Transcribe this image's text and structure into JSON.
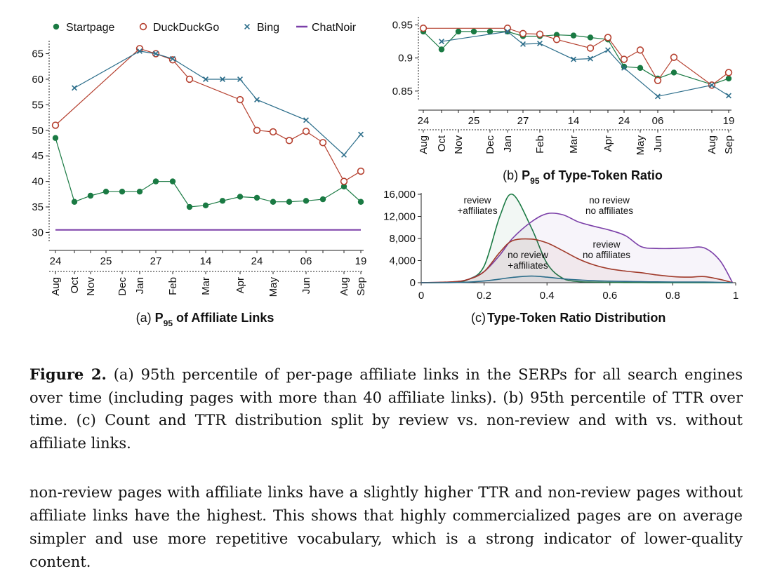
{
  "figure": {
    "caption_label": "Figure 2.",
    "caption_text": "(a) 95th percentile of per-page affiliate links in the SERPs for all search engines over time (including pages with more than 40 affiliate links). (b) 95th percentile of TTR over time. (c) Count and TTR distribution split by review vs. non-review and with vs. without affiliate links."
  },
  "body_text": "non-review pages with affiliate links have a slightly higher TTR and non-review pages without affiliate links have the highest. This shows that highly commercialized pages are on average simpler and use more repetitive vocabulary, which is a strong indicator of lower-quality content.",
  "colors": {
    "startpage": "#1a7a43",
    "duckduckgo": "#b5402f",
    "bing": "#2b6d8a",
    "chatnoir": "#7b3fa8",
    "review_affiliates": "#1a7a43",
    "noreview_noaff": "#7b3fa8",
    "review_noaff": "#a03a2a",
    "noreview_aff": "#2b6d8a"
  },
  "chart_data": [
    {
      "id": "a",
      "type": "line",
      "title_prefix": "(a) P",
      "title_sub": "95",
      "title_suffix": " of Affiliate Links",
      "legend": [
        "Startpage",
        "DuckDuckGo",
        "Bing",
        "ChatNoir"
      ],
      "legend_position": "top",
      "ylim": [
        28,
        67
      ],
      "yticks": [
        "65",
        "60",
        "55",
        "50",
        "45",
        "40",
        "35",
        "30"
      ],
      "day_ticks": [
        "24",
        "25",
        "27",
        "14",
        "24",
        "06",
        "19"
      ],
      "month_ticks": [
        "Aug",
        "Oct",
        "Nov",
        "Dec",
        "Jan",
        "Feb",
        "Mar",
        "Apr",
        "May",
        "Jun",
        "Aug",
        "Sep"
      ],
      "series": [
        {
          "name": "Startpage",
          "marker": "dot",
          "values": [
            48.5,
            36,
            37.2,
            38,
            38,
            38,
            40,
            40,
            35,
            35.3,
            36.2,
            37,
            36.8,
            36,
            36,
            36.2,
            36.5,
            39,
            36
          ]
        },
        {
          "name": "DuckDuckGo",
          "marker": "circle",
          "values": [
            51,
            null,
            null,
            null,
            null,
            66,
            65,
            63.8,
            60,
            null,
            null,
            56,
            50,
            49.7,
            48,
            49.8,
            47.6,
            40,
            42
          ]
        },
        {
          "name": "Bing",
          "marker": "x",
          "values": [
            null,
            58.3,
            null,
            null,
            null,
            65.5,
            65,
            64,
            null,
            60,
            60,
            60,
            56,
            null,
            null,
            52,
            null,
            45.2,
            49.2
          ]
        },
        {
          "name": "ChatNoir",
          "marker": "none",
          "values": [
            30.5,
            30.5,
            30.5,
            30.5,
            30.5,
            30.5,
            30.5,
            30.5,
            30.5,
            30.5,
            30.5,
            30.5,
            30.5,
            30.5,
            30.5,
            30.5,
            30.5,
            30.5,
            30.5
          ]
        }
      ]
    },
    {
      "id": "b",
      "type": "line",
      "title_prefix": "(b) P",
      "title_sub": "95",
      "title_suffix": " of Type-Token Ratio",
      "ylim": [
        0.835,
        0.958
      ],
      "yticks": [
        "0.95",
        "0.9",
        "0.85"
      ],
      "day_ticks": [
        "24",
        "25",
        "27",
        "14",
        "24",
        "06",
        "19"
      ],
      "month_ticks": [
        "Aug",
        "Oct",
        "Nov",
        "Dec",
        "Jan",
        "Feb",
        "Mar",
        "Apr",
        "May",
        "Jun",
        "Aug",
        "Sep"
      ],
      "series": [
        {
          "name": "Startpage",
          "marker": "dot",
          "values": [
            0.94,
            0.913,
            0.94,
            0.94,
            0.94,
            0.94,
            0.933,
            0.933,
            0.935,
            0.934,
            0.931,
            0.928,
            0.887,
            0.885,
            0.869,
            0.878,
            0.86,
            0.869
          ]
        },
        {
          "name": "DuckDuckGo",
          "marker": "circle",
          "values": [
            0.945,
            null,
            null,
            null,
            null,
            0.945,
            0.937,
            0.936,
            0.928,
            null,
            0.915,
            0.931,
            0.898,
            0.912,
            0.866,
            0.901,
            0.859,
            0.878
          ]
        },
        {
          "name": "Bing",
          "marker": "x",
          "values": [
            null,
            0.925,
            null,
            null,
            null,
            0.94,
            0.921,
            0.922,
            null,
            0.898,
            0.899,
            0.912,
            0.885,
            null,
            0.842,
            null,
            0.859,
            0.843
          ]
        }
      ]
    },
    {
      "id": "c",
      "type": "area",
      "title": "(c) Type-Token Ratio Distribution",
      "xlim": [
        0,
        1
      ],
      "ylim": [
        0,
        16000
      ],
      "xticks": [
        "0",
        "0.2",
        "0.4",
        "0.6",
        "0.8",
        "1"
      ],
      "yticks": [
        "16,000",
        "12,000",
        "8,000",
        "4,000",
        "0"
      ],
      "x": [
        0,
        0.1,
        0.15,
        0.2,
        0.25,
        0.29,
        0.35,
        0.4,
        0.45,
        0.5,
        0.55,
        0.6,
        0.65,
        0.7,
        0.75,
        0.8,
        0.85,
        0.9,
        0.95,
        0.99
      ],
      "series": [
        {
          "name": "review\n+affiliates",
          "values": [
            0,
            100,
            600,
            3000,
            12000,
            16000,
            10000,
            3500,
            800,
            200,
            100,
            50,
            30,
            20,
            10,
            10,
            5,
            0,
            0,
            0
          ]
        },
        {
          "name": "no review\nno affiliates",
          "values": [
            0,
            150,
            600,
            2000,
            5000,
            8000,
            11000,
            12500,
            12300,
            11000,
            10200,
            9500,
            8500,
            6500,
            6200,
            6200,
            6300,
            6300,
            4000,
            0
          ]
        },
        {
          "name": "review\nno affiliates",
          "values": [
            0,
            150,
            600,
            2000,
            5500,
            7600,
            7900,
            7200,
            5800,
            4300,
            3200,
            2500,
            2100,
            1800,
            1400,
            1100,
            1000,
            1100,
            600,
            0
          ]
        },
        {
          "name": "no review\n+affiliates",
          "values": [
            0,
            20,
            100,
            300,
            650,
            950,
            1200,
            1000,
            700,
            500,
            350,
            280,
            230,
            180,
            150,
            130,
            120,
            110,
            60,
            0
          ]
        }
      ]
    }
  ]
}
